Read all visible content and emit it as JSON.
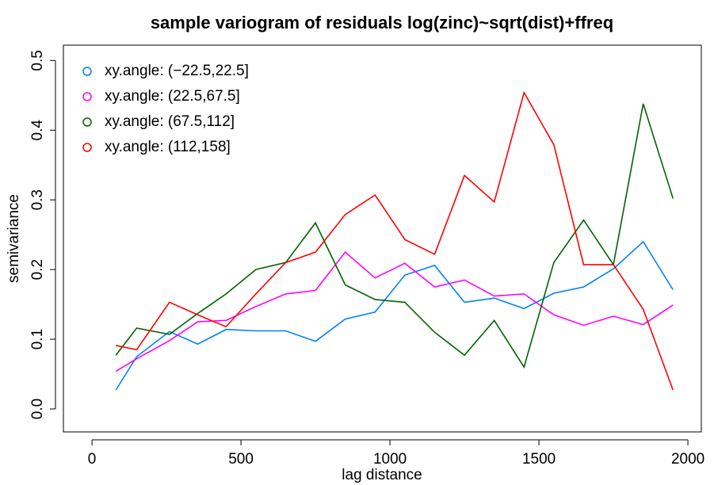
{
  "chart_data": {
    "type": "line",
    "title": "sample variogram of residuals log(zinc)~sqrt(dist)+ffreq",
    "x_label": "lag distance",
    "y_label": "semivariance",
    "x": [
      80,
      150,
      260,
      355,
      450,
      550,
      650,
      750,
      850,
      950,
      1050,
      1150,
      1250,
      1350,
      1450,
      1550,
      1650,
      1750,
      1850,
      1950
    ],
    "series": [
      {
        "name": "xy.angle: (−22.5,22.5]",
        "color": "#0080ff",
        "values": [
          0.027,
          0.075,
          0.111,
          0.093,
          0.114,
          0.112,
          0.112,
          0.097,
          0.129,
          0.139,
          0.192,
          0.206,
          0.153,
          0.159,
          0.144,
          0.166,
          0.175,
          0.201,
          0.24,
          0.171
        ]
      },
      {
        "name": "xy.angle: (22.5,67.5]",
        "color": "#ff00ff",
        "values": [
          0.054,
          0.072,
          0.098,
          0.125,
          0.127,
          0.147,
          0.165,
          0.17,
          0.225,
          0.188,
          0.209,
          0.175,
          0.185,
          0.162,
          0.165,
          0.135,
          0.12,
          0.133,
          0.121,
          0.149
        ]
      },
      {
        "name": "xy.angle: (67.5,112]",
        "color": "#006400",
        "values": [
          0.077,
          0.116,
          0.107,
          0.137,
          0.165,
          0.2,
          0.21,
          0.267,
          0.178,
          0.157,
          0.153,
          0.11,
          0.077,
          0.127,
          0.06,
          0.21,
          0.271,
          0.207,
          0.438,
          0.302
        ]
      },
      {
        "name": "xy.angle: (112,158]",
        "color": "#ff0000",
        "values": [
          0.091,
          0.085,
          0.153,
          0.135,
          0.118,
          0.165,
          0.21,
          0.225,
          0.279,
          0.307,
          0.243,
          0.222,
          0.335,
          0.297,
          0.454,
          0.379,
          0.207,
          0.207,
          0.143,
          0.027
        ]
      }
    ],
    "xlim": [
      -96,
      2045
    ],
    "ylim": [
      -0.033,
      0.522
    ],
    "xticks": [
      0,
      500,
      1000,
      1500,
      2000
    ],
    "yticks": [
      {
        "value": 0,
        "label": "0.0"
      },
      0.1,
      0.2,
      0.3,
      0.4,
      0.5
    ],
    "legend": "top-left"
  }
}
